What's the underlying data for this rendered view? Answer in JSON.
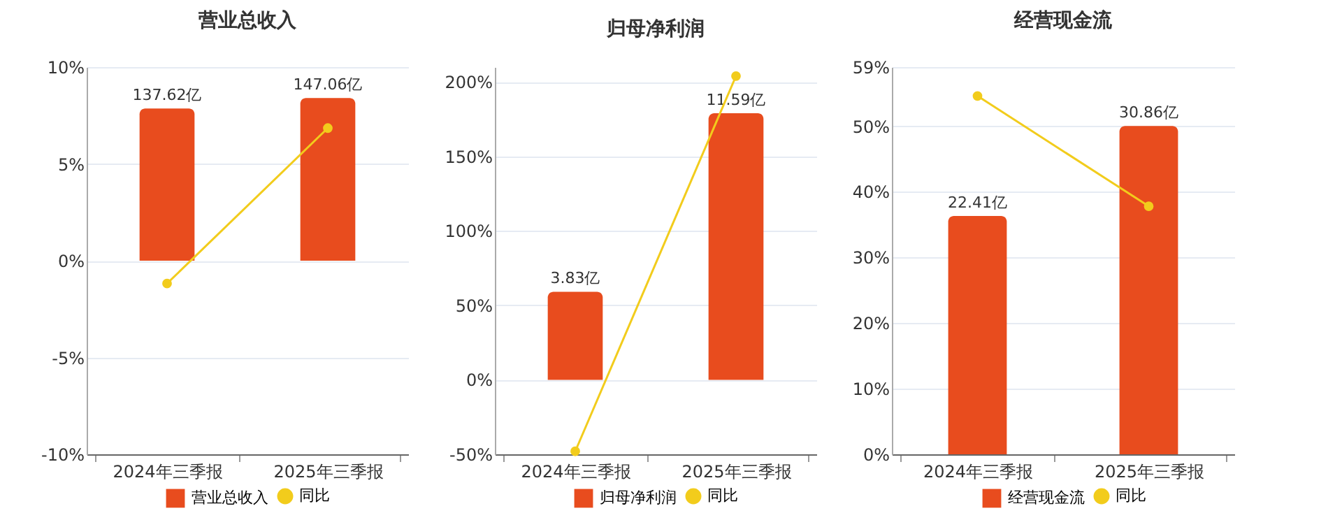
{
  "chart_data": [
    {
      "type": "bar",
      "title": "营业总收入",
      "categories": [
        "2024年三季报",
        "2025年三季报"
      ],
      "series": [
        {
          "name": "营业总收入",
          "color": "#e84c1e",
          "axis": "y2",
          "values": [
            137.62,
            147.06
          ],
          "value_labels": [
            "137.62亿",
            "147.06亿"
          ]
        },
        {
          "type": "line",
          "name": "同比",
          "color": "#f2cc1c",
          "values": [
            -1.18,
            6.85
          ]
        }
      ],
      "ylim": [
        -10,
        10
      ],
      "yticks": [
        {
          "value": -10,
          "label": "-10%"
        },
        {
          "value": -5,
          "label": "-5%"
        },
        {
          "value": 0,
          "label": "0%"
        },
        {
          "value": 5,
          "label": "5%"
        },
        {
          "value": 10,
          "label": "10%"
        }
      ],
      "y2lim": [
        -175,
        175
      ],
      "grid": "y",
      "legend": "bottom",
      "marker": "circle"
    },
    {
      "type": "bar",
      "title": "归母净利润",
      "categories": [
        "2024年三季报",
        "2025年三季报"
      ],
      "series": [
        {
          "name": "归母净利润",
          "color": "#e84c1e",
          "axis": "y2",
          "values": [
            3.83,
            11.59
          ],
          "value_labels": [
            "3.83亿",
            "11.59亿"
          ]
        },
        {
          "type": "line",
          "name": "同比",
          "color": "#f2cc1c",
          "values": [
            -48,
            204
          ]
        }
      ],
      "ylim": [
        -50,
        210
      ],
      "yticks": [
        {
          "value": -50,
          "label": "-50%"
        },
        {
          "value": 0,
          "label": "0%"
        },
        {
          "value": 50,
          "label": "50%"
        },
        {
          "value": 100,
          "label": "100%"
        },
        {
          "value": 150,
          "label": "150%"
        },
        {
          "value": 200,
          "label": "200%"
        }
      ],
      "y2lim": [
        -3.24,
        13.6
      ],
      "grid": "y",
      "legend": "bottom",
      "marker": "circle"
    },
    {
      "type": "bar",
      "title": "经营现金流",
      "categories": [
        "2024年三季报",
        "2025年三季报"
      ],
      "series": [
        {
          "name": "经营现金流",
          "color": "#e84c1e",
          "axis": "y2",
          "values": [
            22.41,
            30.86
          ],
          "value_labels": [
            "22.41亿",
            "30.86亿"
          ]
        },
        {
          "type": "line",
          "name": "同比",
          "color": "#f2cc1c",
          "values": [
            54.6,
            37.8
          ]
        }
      ],
      "ylim": [
        0,
        59
      ],
      "yticks": [
        {
          "value": 0,
          "label": "0%"
        },
        {
          "value": 10,
          "label": "10%"
        },
        {
          "value": 20,
          "label": "20%"
        },
        {
          "value": 30,
          "label": "30%"
        },
        {
          "value": 40,
          "label": "40%"
        },
        {
          "value": 50,
          "label": "50%"
        },
        {
          "value": 59,
          "label": "59%"
        }
      ],
      "y2lim": [
        0,
        36.4
      ],
      "grid": "y",
      "legend": "bottom",
      "marker": "circle"
    }
  ]
}
